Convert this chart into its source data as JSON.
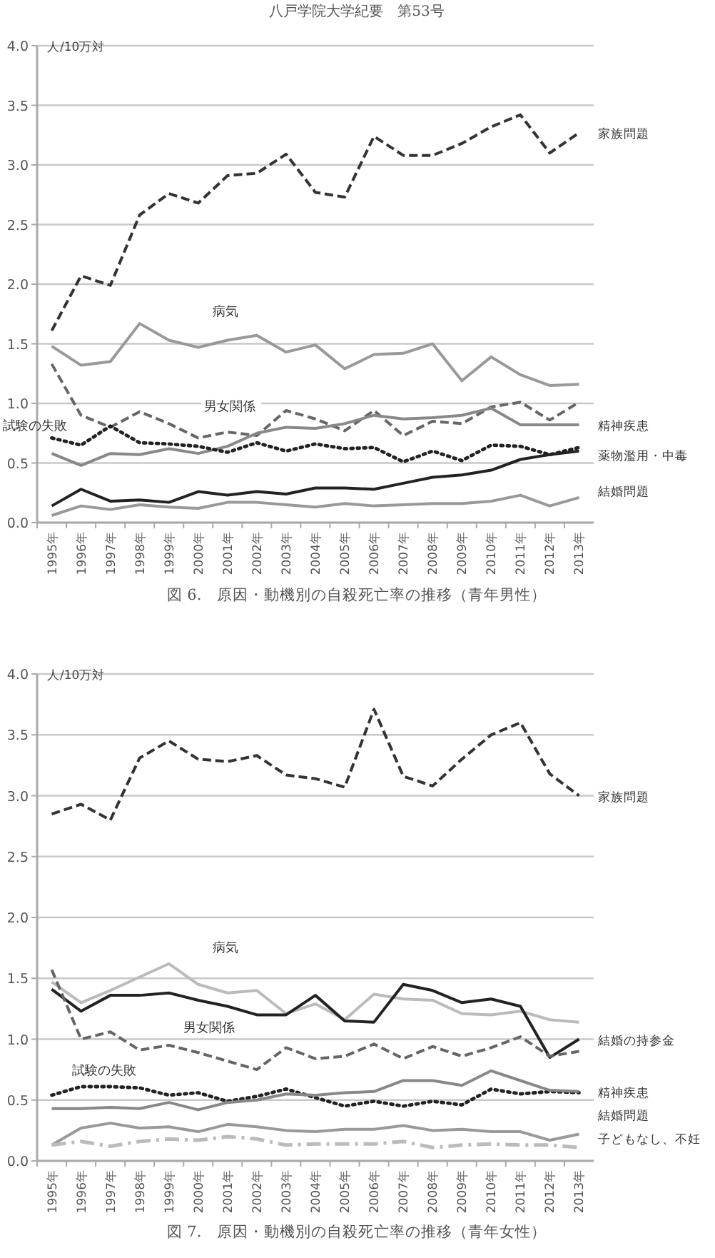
{
  "chart_data": [
    {
      "type": "line",
      "title": "図 6.　原因・動機別の自殺死亡率の推移（青年男性）",
      "ylabel": "人/10万対",
      "annotations": [
        "八戸学院大学紀要　第53号"
      ],
      "grid": "y",
      "marker": "none",
      "categories": [
        "1995年",
        "1996年",
        "1997年",
        "1998年",
        "1999年",
        "2000年",
        "2001年",
        "2002年",
        "2003年",
        "2004年",
        "2005年",
        "2006年",
        "2007年",
        "2008年",
        "2009年",
        "2010年",
        "2011年",
        "2012年",
        "2013年"
      ],
      "ylim": [
        0,
        4
      ],
      "yticks": [
        {
          "value": 0,
          "label": "0.0"
        },
        {
          "value": 0.5,
          "label": "0.5"
        },
        {
          "value": 1,
          "label": "1.0"
        },
        {
          "value": 1.5,
          "label": "1.5"
        },
        {
          "value": 2,
          "label": "2.0"
        },
        {
          "value": 2.5,
          "label": "2.5"
        },
        {
          "value": 3,
          "label": "3.0"
        },
        {
          "value": 3.5,
          "label": "3.5"
        },
        {
          "value": 4,
          "label": "4.0"
        }
      ],
      "series": [
        {
          "name": "家族問題",
          "color": "#333333",
          "line_style": "dashed",
          "values": [
            1.61,
            2.07,
            1.99,
            2.58,
            2.76,
            2.68,
            2.91,
            2.93,
            3.09,
            2.77,
            2.73,
            3.24,
            3.08,
            3.08,
            3.18,
            3.32,
            3.42,
            3.1,
            3.27
          ]
        },
        {
          "name": "病気",
          "color": "#999999",
          "line_style": "solid",
          "values": [
            1.48,
            1.32,
            1.35,
            1.67,
            1.53,
            1.47,
            1.53,
            1.57,
            1.43,
            1.49,
            1.29,
            1.41,
            1.42,
            1.5,
            1.19,
            1.39,
            1.24,
            1.15,
            1.16
          ]
        },
        {
          "name": "男女関係",
          "color": "#666666",
          "line_style": "dashed",
          "values": [
            1.33,
            0.9,
            0.8,
            0.93,
            0.83,
            0.71,
            0.76,
            0.73,
            0.94,
            0.87,
            0.77,
            0.94,
            0.73,
            0.85,
            0.83,
            0.97,
            1.01,
            0.86,
            1.01
          ]
        },
        {
          "name": "精神疾患",
          "color": "#888888",
          "line_style": "solid",
          "values": [
            0.58,
            0.48,
            0.58,
            0.57,
            0.62,
            0.58,
            0.64,
            0.75,
            0.8,
            0.79,
            0.83,
            0.9,
            0.87,
            0.88,
            0.9,
            0.96,
            0.82,
            0.82,
            0.82
          ]
        },
        {
          "name": "試験の失敗",
          "color": "#222222",
          "line_style": "dotted",
          "values": [
            0.71,
            0.65,
            0.81,
            0.67,
            0.66,
            0.64,
            0.59,
            0.67,
            0.6,
            0.66,
            0.62,
            0.63,
            0.51,
            0.6,
            0.52,
            0.65,
            0.64,
            0.57,
            0.63
          ]
        },
        {
          "name": "薬物濫用・中毒",
          "color": "#222222",
          "line_style": "solid",
          "values": [
            0.14,
            0.28,
            0.18,
            0.19,
            0.17,
            0.26,
            0.23,
            0.26,
            0.24,
            0.29,
            0.29,
            0.28,
            0.33,
            0.38,
            0.4,
            0.44,
            0.53,
            0.57,
            0.6
          ]
        },
        {
          "name": "結婚問題",
          "color": "#999999",
          "line_style": "solid",
          "values": [
            0.06,
            0.14,
            0.11,
            0.15,
            0.13,
            0.12,
            0.17,
            0.17,
            0.15,
            0.13,
            0.16,
            0.14,
            0.15,
            0.16,
            0.16,
            0.18,
            0.23,
            0.14,
            0.21
          ]
        }
      ]
    },
    {
      "type": "line",
      "title": "図 7.　原因・動機別の自殺死亡率の推移（青年女性）",
      "ylabel": "人/10万対",
      "grid": "y",
      "marker": "none",
      "categories": [
        "1995年",
        "1996年",
        "1997年",
        "1998年",
        "1999年",
        "2000年",
        "2001年",
        "2002年",
        "2003年",
        "2004年",
        "2005年",
        "2006年",
        "2007年",
        "2008年",
        "2009年",
        "2010年",
        "2011年",
        "2012年",
        "2013年"
      ],
      "ylim": [
        0,
        4
      ],
      "yticks": [
        {
          "value": 0,
          "label": "0.0"
        },
        {
          "value": 0.5,
          "label": "0.5"
        },
        {
          "value": 1,
          "label": "1.0"
        },
        {
          "value": 1.5,
          "label": "1.5"
        },
        {
          "value": 2,
          "label": "2.0"
        },
        {
          "value": 2.5,
          "label": "2.5"
        },
        {
          "value": 3,
          "label": "3.0"
        },
        {
          "value": 3.5,
          "label": "3.5"
        },
        {
          "value": 4,
          "label": "4.0"
        }
      ],
      "series": [
        {
          "name": "家族問題",
          "color": "#333333",
          "line_style": "dashed",
          "values": [
            2.85,
            2.93,
            2.8,
            3.31,
            3.45,
            3.3,
            3.28,
            3.33,
            3.17,
            3.14,
            3.07,
            3.71,
            3.16,
            3.08,
            3.3,
            3.5,
            3.6,
            3.18,
            3.0
          ]
        },
        {
          "name": "病気",
          "color": "#bbbbbb",
          "line_style": "solid",
          "values": [
            1.47,
            1.3,
            1.4,
            1.51,
            1.62,
            1.45,
            1.38,
            1.4,
            1.21,
            1.29,
            1.16,
            1.37,
            1.33,
            1.32,
            1.21,
            1.2,
            1.23,
            1.16,
            1.14
          ]
        },
        {
          "name": "結婚の持参金",
          "color": "#222222",
          "line_style": "solid",
          "values": [
            1.41,
            1.23,
            1.36,
            1.36,
            1.38,
            1.32,
            1.27,
            1.2,
            1.2,
            1.36,
            1.15,
            1.14,
            1.45,
            1.4,
            1.3,
            1.33,
            1.27,
            0.85,
            1.0
          ]
        },
        {
          "name": "男女関係",
          "color": "#666666",
          "line_style": "dashed",
          "values": [
            1.57,
            1.0,
            1.06,
            0.91,
            0.95,
            0.89,
            0.82,
            0.75,
            0.93,
            0.84,
            0.86,
            0.96,
            0.84,
            0.94,
            0.86,
            0.93,
            1.02,
            0.86,
            0.9
          ]
        },
        {
          "name": "試験の失敗",
          "color": "#222222",
          "line_style": "dotted",
          "values": [
            0.54,
            0.61,
            0.61,
            0.6,
            0.54,
            0.56,
            0.49,
            0.53,
            0.59,
            0.52,
            0.45,
            0.49,
            0.45,
            0.49,
            0.46,
            0.59,
            0.55,
            0.57,
            0.56
          ]
        },
        {
          "name": "精神疾患",
          "color": "#888888",
          "line_style": "solid",
          "values": [
            0.43,
            0.43,
            0.44,
            0.43,
            0.48,
            0.42,
            0.48,
            0.5,
            0.55,
            0.54,
            0.56,
            0.57,
            0.66,
            0.66,
            0.62,
            0.74,
            0.66,
            0.58,
            0.57
          ]
        },
        {
          "name": "結婚問題",
          "color": "#999999",
          "line_style": "solid",
          "values": [
            0.13,
            0.27,
            0.31,
            0.27,
            0.28,
            0.24,
            0.3,
            0.28,
            0.25,
            0.24,
            0.26,
            0.26,
            0.29,
            0.25,
            0.26,
            0.24,
            0.24,
            0.17,
            0.22
          ]
        },
        {
          "name": "子どもなし、不妊",
          "color": "#bbbbbb",
          "line_style": "dashdot",
          "values": [
            0.13,
            0.16,
            0.12,
            0.16,
            0.18,
            0.17,
            0.2,
            0.18,
            0.13,
            0.14,
            0.14,
            0.14,
            0.16,
            0.11,
            0.13,
            0.14,
            0.13,
            0.13,
            0.11
          ]
        }
      ]
    }
  ]
}
